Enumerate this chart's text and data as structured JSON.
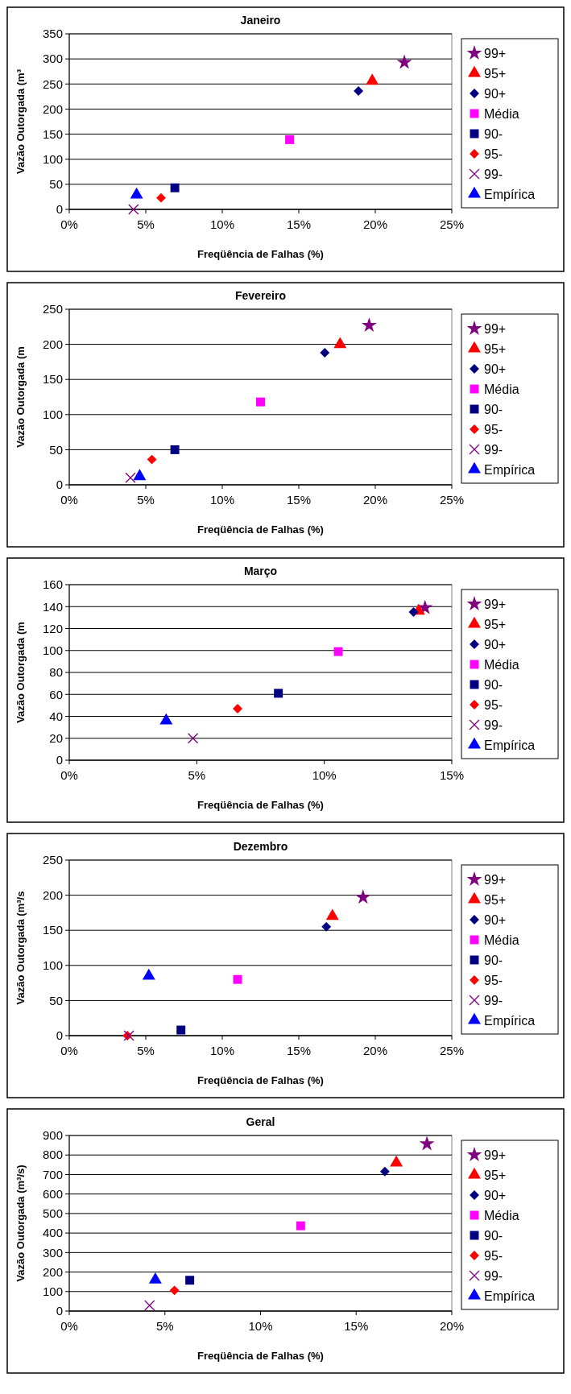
{
  "chart_data": [
    {
      "type": "scatter",
      "title": "Janeiro",
      "xlabel": "Freqüência de Falhas (%)",
      "ylabel": "Vazão Outorgada (m³",
      "grid": "y",
      "legend": "right",
      "xlim": [
        0,
        25
      ],
      "xticks": [
        {
          "value": 0,
          "label": "0%"
        },
        {
          "value": 5,
          "label": "5%"
        },
        {
          "value": 10,
          "label": "10%"
        },
        {
          "value": 15,
          "label": "15%"
        },
        {
          "value": 20,
          "label": "20%"
        },
        {
          "value": 25,
          "label": "25%"
        }
      ],
      "ylim": [
        0,
        350
      ],
      "yticks": [
        0,
        50,
        100,
        150,
        200,
        250,
        300,
        350
      ],
      "series": [
        {
          "name": "99+",
          "color": "#800080",
          "marker": "star",
          "x": [
            21.9
          ],
          "values": [
            293
          ]
        },
        {
          "name": "95+",
          "color": "#ff0000",
          "marker": "triangle",
          "x": [
            19.8
          ],
          "values": [
            256
          ]
        },
        {
          "name": "90+",
          "color": "#000080",
          "marker": "diamond",
          "x": [
            18.9
          ],
          "values": [
            236
          ]
        },
        {
          "name": "Média",
          "color": "#ff00ff",
          "marker": "square",
          "x": [
            14.4
          ],
          "values": [
            139
          ]
        },
        {
          "name": "90-",
          "color": "#000080",
          "marker": "square",
          "x": [
            6.9
          ],
          "values": [
            43
          ]
        },
        {
          "name": "95-",
          "color": "#ff0000",
          "marker": "diamond",
          "x": [
            6.0
          ],
          "values": [
            23
          ]
        },
        {
          "name": "99-",
          "color": "#800080",
          "marker": "cross",
          "x": [
            4.2
          ],
          "values": [
            0
          ]
        },
        {
          "name": "Empírica",
          "color": "#0000ff",
          "marker": "triangle",
          "x": [
            4.4
          ],
          "values": [
            29
          ]
        }
      ]
    },
    {
      "type": "scatter",
      "title": "Fevereiro",
      "xlabel": "Freqüência de Falhas (%)",
      "ylabel": "Vazão Outorgada (m",
      "grid": "y",
      "legend": "right",
      "xlim": [
        0,
        25
      ],
      "xticks": [
        {
          "value": 0,
          "label": "0%"
        },
        {
          "value": 5,
          "label": "5%"
        },
        {
          "value": 10,
          "label": "10%"
        },
        {
          "value": 15,
          "label": "15%"
        },
        {
          "value": 20,
          "label": "20%"
        },
        {
          "value": 25,
          "label": "25%"
        }
      ],
      "ylim": [
        0,
        250
      ],
      "yticks": [
        0,
        50,
        100,
        150,
        200,
        250
      ],
      "series": [
        {
          "name": "99+",
          "color": "#800080",
          "marker": "star",
          "x": [
            19.6
          ],
          "values": [
            227
          ]
        },
        {
          "name": "95+",
          "color": "#ff0000",
          "marker": "triangle",
          "x": [
            17.7
          ],
          "values": [
            200
          ]
        },
        {
          "name": "90+",
          "color": "#000080",
          "marker": "diamond",
          "x": [
            16.7
          ],
          "values": [
            188
          ]
        },
        {
          "name": "Média",
          "color": "#ff00ff",
          "marker": "square",
          "x": [
            12.5
          ],
          "values": [
            118
          ]
        },
        {
          "name": "90-",
          "color": "#000080",
          "marker": "square",
          "x": [
            6.9
          ],
          "values": [
            50
          ]
        },
        {
          "name": "95-",
          "color": "#ff0000",
          "marker": "diamond",
          "x": [
            5.4
          ],
          "values": [
            36
          ]
        },
        {
          "name": "99-",
          "color": "#800080",
          "marker": "cross",
          "x": [
            4.0
          ],
          "values": [
            10
          ]
        },
        {
          "name": "Empírica",
          "color": "#0000ff",
          "marker": "triangle",
          "x": [
            4.6
          ],
          "values": [
            12
          ]
        }
      ]
    },
    {
      "type": "scatter",
      "title": "Março",
      "xlabel": "Freqüência de Falhas (%)",
      "ylabel": "Vazão Outorgada (m",
      "grid": "y",
      "legend": "right",
      "xlim": [
        0,
        15
      ],
      "xticks": [
        {
          "value": 0,
          "label": "0%"
        },
        {
          "value": 5,
          "label": "5%"
        },
        {
          "value": 10,
          "label": "10%"
        },
        {
          "value": 15,
          "label": "15%"
        }
      ],
      "ylim": [
        0,
        160
      ],
      "yticks": [
        0,
        20,
        40,
        60,
        80,
        100,
        120,
        140,
        160
      ],
      "series": [
        {
          "name": "99+",
          "color": "#800080",
          "marker": "star",
          "x": [
            13.95
          ],
          "values": [
            139
          ]
        },
        {
          "name": "95+",
          "color": "#ff0000",
          "marker": "triangle",
          "x": [
            13.7
          ],
          "values": [
            136
          ]
        },
        {
          "name": "90+",
          "color": "#000080",
          "marker": "diamond",
          "x": [
            13.5
          ],
          "values": [
            135
          ]
        },
        {
          "name": "Média",
          "color": "#ff00ff",
          "marker": "square",
          "x": [
            10.55
          ],
          "values": [
            99
          ]
        },
        {
          "name": "90-",
          "color": "#000080",
          "marker": "square",
          "x": [
            8.2
          ],
          "values": [
            61
          ]
        },
        {
          "name": "95-",
          "color": "#ff0000",
          "marker": "diamond",
          "x": [
            6.6
          ],
          "values": [
            47
          ]
        },
        {
          "name": "99-",
          "color": "#800080",
          "marker": "cross",
          "x": [
            4.85
          ],
          "values": [
            20
          ]
        },
        {
          "name": "Empírica",
          "color": "#0000ff",
          "marker": "triangle",
          "x": [
            3.8
          ],
          "values": [
            36
          ]
        }
      ]
    },
    {
      "type": "scatter",
      "title": "Dezembro",
      "xlabel": "Freqüência de Falhas (%)",
      "ylabel": "Vazão Outorgada (m³/s",
      "grid": "y",
      "legend": "right",
      "xlim": [
        0,
        25
      ],
      "xticks": [
        {
          "value": 0,
          "label": "0%"
        },
        {
          "value": 5,
          "label": "5%"
        },
        {
          "value": 10,
          "label": "10%"
        },
        {
          "value": 15,
          "label": "15%"
        },
        {
          "value": 20,
          "label": "20%"
        },
        {
          "value": 25,
          "label": "25%"
        }
      ],
      "ylim": [
        0,
        250
      ],
      "yticks": [
        0,
        50,
        100,
        150,
        200,
        250
      ],
      "series": [
        {
          "name": "99+",
          "color": "#800080",
          "marker": "star",
          "x": [
            19.2
          ],
          "values": [
            197
          ]
        },
        {
          "name": "95+",
          "color": "#ff0000",
          "marker": "triangle",
          "x": [
            17.2
          ],
          "values": [
            170
          ]
        },
        {
          "name": "90+",
          "color": "#000080",
          "marker": "diamond",
          "x": [
            16.8
          ],
          "values": [
            155
          ]
        },
        {
          "name": "Média",
          "color": "#ff00ff",
          "marker": "square",
          "x": [
            11.0
          ],
          "values": [
            80
          ]
        },
        {
          "name": "90-",
          "color": "#000080",
          "marker": "square",
          "x": [
            7.3
          ],
          "values": [
            8
          ]
        },
        {
          "name": "95-",
          "color": "#ff0000",
          "marker": "diamond",
          "x": [
            3.8
          ],
          "values": [
            0
          ]
        },
        {
          "name": "99-",
          "color": "#800080",
          "marker": "cross",
          "x": [
            3.9
          ],
          "values": [
            0
          ]
        },
        {
          "name": "Empírica",
          "color": "#0000ff",
          "marker": "triangle",
          "x": [
            5.2
          ],
          "values": [
            85
          ]
        }
      ]
    },
    {
      "type": "scatter",
      "title": "Geral",
      "xlabel": "Freqüência de Falhas (%)",
      "ylabel": "Vazão Outorgada (m³/s)",
      "grid": "y",
      "legend": "right",
      "xlim": [
        0,
        20
      ],
      "xticks": [
        {
          "value": 0,
          "label": "0%"
        },
        {
          "value": 5,
          "label": "5%"
        },
        {
          "value": 10,
          "label": "10%"
        },
        {
          "value": 15,
          "label": "15%"
        },
        {
          "value": 20,
          "label": "20%"
        }
      ],
      "ylim": [
        0,
        900
      ],
      "yticks": [
        0,
        100,
        200,
        300,
        400,
        500,
        600,
        700,
        800,
        900
      ],
      "series": [
        {
          "name": "99+",
          "color": "#800080",
          "marker": "star",
          "x": [
            18.7
          ],
          "values": [
            857
          ]
        },
        {
          "name": "95+",
          "color": "#ff0000",
          "marker": "triangle",
          "x": [
            17.1
          ],
          "values": [
            760
          ]
        },
        {
          "name": "90+",
          "color": "#000080",
          "marker": "diamond",
          "x": [
            16.5
          ],
          "values": [
            715
          ]
        },
        {
          "name": "Média",
          "color": "#ff00ff",
          "marker": "square",
          "x": [
            12.1
          ],
          "values": [
            437
          ]
        },
        {
          "name": "90-",
          "color": "#000080",
          "marker": "square",
          "x": [
            6.3
          ],
          "values": [
            158
          ]
        },
        {
          "name": "95-",
          "color": "#ff0000",
          "marker": "diamond",
          "x": [
            5.5
          ],
          "values": [
            106
          ]
        },
        {
          "name": "99-",
          "color": "#800080",
          "marker": "cross",
          "x": [
            4.2
          ],
          "values": [
            29
          ]
        },
        {
          "name": "Empírica",
          "color": "#0000ff",
          "marker": "triangle",
          "x": [
            4.5
          ],
          "values": [
            160
          ]
        }
      ]
    }
  ]
}
